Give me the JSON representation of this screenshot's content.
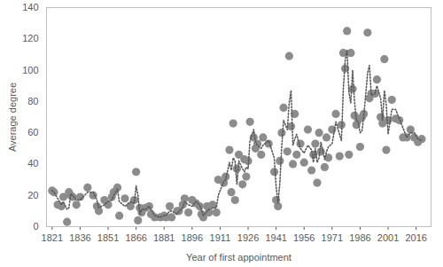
{
  "chart_data": {
    "type": "scatter",
    "x_label": "Year of first appointment",
    "y_label": "Average degree",
    "x": [
      1821,
      1822,
      1824,
      1826,
      1827,
      1829,
      1830,
      1831,
      1832,
      1834,
      1836,
      1840,
      1843,
      1845,
      1846,
      1849,
      1851,
      1853,
      1854,
      1856,
      1857,
      1860,
      1863,
      1865,
      1866,
      1867,
      1868,
      1869,
      1871,
      1873,
      1874,
      1876,
      1879,
      1881,
      1882,
      1884,
      1885,
      1888,
      1889,
      1891,
      1892,
      1894,
      1896,
      1898,
      1900,
      1901,
      1902,
      1904,
      1905,
      1907,
      1909,
      1910,
      1913,
      1914,
      1916,
      1917,
      1918,
      1919,
      1920,
      1921,
      1923,
      1924,
      1925,
      1926,
      1927,
      1929,
      1930,
      1931,
      1933,
      1934,
      1937,
      1940,
      1941,
      1942,
      1943,
      1944,
      1945,
      1947,
      1948,
      1949,
      1950,
      1951,
      1952,
      1954,
      1956,
      1958,
      1960,
      1961,
      1962,
      1963,
      1964,
      1965,
      1967,
      1968,
      1969,
      1971,
      1973,
      1975,
      1976,
      1977,
      1978,
      1979,
      1980,
      1981,
      1982,
      1983,
      1984,
      1985,
      1986,
      1987,
      1988,
      1990,
      1991,
      1992,
      1994,
      1995,
      1997,
      1998,
      1999,
      2000,
      2001,
      2003,
      2005,
      2007,
      2009,
      2011,
      2013,
      2015,
      2017,
      2019
    ],
    "series": [
      {
        "type": "scatter",
        "marker": "circle",
        "color": "#8c8c8c",
        "values": [
          23,
          22,
          14,
          13,
          19,
          3,
          22,
          20,
          19,
          14,
          19,
          25,
          20,
          13,
          10,
          17,
          14,
          19,
          22,
          25,
          7,
          18,
          13,
          17,
          35,
          4,
          12,
          9,
          12,
          13,
          8,
          6,
          6,
          7,
          6,
          13,
          6,
          10,
          10,
          14,
          18,
          9,
          17,
          15,
          13,
          8,
          6,
          13,
          9,
          14,
          9,
          30,
          28,
          32,
          49,
          22,
          66,
          17,
          37,
          46,
          27,
          43,
          32,
          42,
          67,
          57,
          50,
          53,
          46,
          57,
          53,
          35,
          17,
          13,
          42,
          60,
          76,
          48,
          109,
          64,
          40,
          72,
          46,
          53,
          41,
          62,
          36,
          46,
          53,
          28,
          60,
          48,
          38,
          57,
          44,
          62,
          72,
          45,
          65,
          111,
          101,
          125,
          46,
          111,
          88,
          71,
          65,
          68,
          51,
          70,
          72,
          124,
          82,
          85,
          85,
          94,
          70,
          66,
          107,
          49,
          68,
          81,
          69,
          68,
          57,
          57,
          62,
          57,
          54,
          56
        ]
      },
      {
        "type": "line",
        "line_style": "dotted",
        "color": "#595959",
        "values": [
          23,
          22,
          18,
          14,
          16,
          11,
          12,
          21,
          20,
          17,
          17,
          22,
          22,
          17,
          12,
          14,
          16,
          17,
          20,
          24,
          16,
          13,
          16,
          15,
          26,
          20,
          8,
          11,
          11,
          13,
          11,
          7,
          6,
          7,
          7,
          10,
          10,
          8,
          10,
          12,
          16,
          14,
          13,
          16,
          14,
          11,
          7,
          10,
          11,
          12,
          12,
          20,
          29,
          30,
          41,
          36,
          44,
          42,
          27,
          42,
          37,
          35,
          38,
          37,
          55,
          62,
          54,
          52,
          50,
          52,
          55,
          44,
          26,
          15,
          28,
          51,
          68,
          62,
          79,
          87,
          52,
          56,
          59,
          50,
          47,
          52,
          49,
          41,
          50,
          41,
          44,
          54,
          43,
          48,
          51,
          53,
          67,
          59,
          55,
          88,
          106,
          113,
          86,
          79,
          100,
          80,
          68,
          67,
          60,
          61,
          71,
          98,
          103,
          84,
          85,
          90,
          82,
          68,
          87,
          78,
          59,
          75,
          75,
          69,
          63,
          57,
          60,
          60,
          56,
          55
        ]
      }
    ],
    "xlim": [
      1818,
      2024
    ],
    "xticks": [
      1821,
      1836,
      1851,
      1866,
      1881,
      1896,
      1911,
      1926,
      1941,
      1956,
      1971,
      1986,
      2001,
      2016
    ],
    "ylim": [
      0,
      140
    ],
    "yticks": [
      0,
      20,
      40,
      60,
      80,
      100,
      120,
      140
    ],
    "grid": false
  }
}
